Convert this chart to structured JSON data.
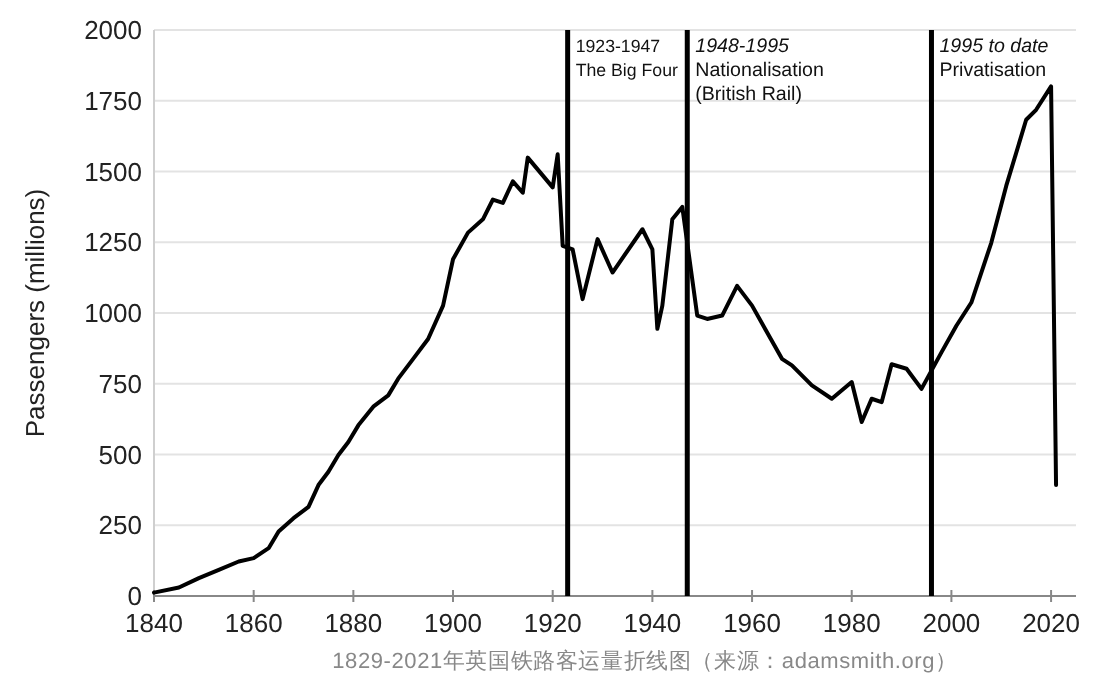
{
  "chart_data": {
    "type": "line",
    "ylabel": "Passengers (millions)",
    "x": [
      1840,
      1845,
      1849,
      1853,
      1857,
      1860,
      1863,
      1865,
      1868,
      1871,
      1873,
      1875,
      1877,
      1879,
      1881,
      1884,
      1887,
      1889,
      1892,
      1895,
      1898,
      1900,
      1903,
      1906,
      1908,
      1910,
      1912,
      1914,
      1915,
      1920,
      1921,
      1922,
      1924,
      1926,
      1929,
      1932,
      1938,
      1940,
      1941,
      1942,
      1944,
      1946,
      1949,
      1951,
      1954,
      1957,
      1960,
      1963,
      1966,
      1968,
      1972,
      1976,
      1980,
      1982,
      1984,
      1986,
      1988,
      1991,
      1994,
      1998,
      2001,
      2004,
      2008,
      2011,
      2015,
      2017,
      2020,
      2021
    ],
    "series": [
      {
        "color": "#000000",
        "values": [
          12,
          30,
          63,
          92,
          122,
          134,
          169,
          228,
          275,
          315,
          392,
          439,
          498,
          544,
          603,
          669,
          709,
          768,
          838,
          908,
          1026,
          1190,
          1284,
          1331,
          1401,
          1389,
          1465,
          1425,
          1549,
          1444,
          1561,
          1237,
          1225,
          1049,
          1261,
          1143,
          1296,
          1225,
          944,
          1026,
          1331,
          1375,
          991,
          979,
          991,
          1096,
          1026,
          932,
          838,
          815,
          744,
          697,
          756,
          615,
          697,
          685,
          819,
          803,
          732,
          861,
          955,
          1037,
          1248,
          1449,
          1683,
          1718,
          1801,
          392
        ]
      }
    ],
    "xlim": [
      1840,
      2025
    ],
    "ylim": [
      0,
      2000
    ],
    "xticks": [
      1840,
      1860,
      1880,
      1900,
      1920,
      1940,
      1960,
      1980,
      2000,
      2020
    ],
    "yticks": [
      0,
      250,
      500,
      750,
      1000,
      1250,
      1500,
      1750,
      2000
    ],
    "grid": "y",
    "marker": "none",
    "line_style": "solid",
    "ref_lines": [
      {
        "axis": "x",
        "value": 1923,
        "label": "1923-1947\nThe Big Four",
        "color": "#000000"
      },
      {
        "axis": "x",
        "value": 1947,
        "label": "*1948-1995*\nNationalisation\n(British Rail)",
        "color": "#000000"
      },
      {
        "axis": "x",
        "value": 1996,
        "label": "*1995 to date*\nPrivatisation",
        "color": "#000000"
      }
    ],
    "annotations": [
      "1829-2021年英国铁路客运量折线图（来源：adamsmith.org）"
    ]
  }
}
